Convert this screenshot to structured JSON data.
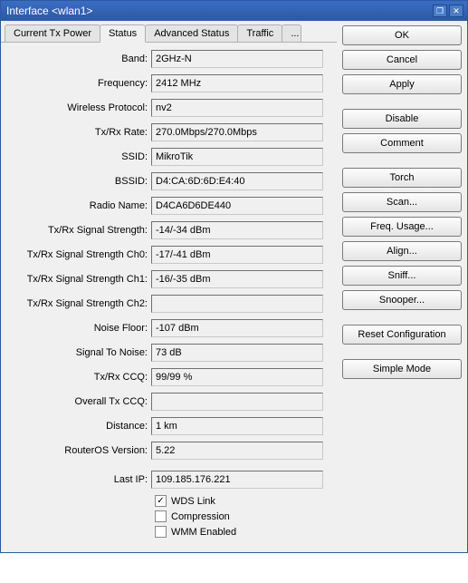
{
  "window": {
    "title": "Interface <wlan1>"
  },
  "tabs": {
    "current_tx_power": "Current Tx Power",
    "status": "Status",
    "advanced_status": "Advanced Status",
    "traffic": "Traffic",
    "more": "..."
  },
  "fields": {
    "band": {
      "label": "Band:",
      "value": "2GHz-N"
    },
    "frequency": {
      "label": "Frequency:",
      "value": "2412 MHz"
    },
    "wireless_protocol": {
      "label": "Wireless Protocol:",
      "value": "nv2"
    },
    "txrx_rate": {
      "label": "Tx/Rx Rate:",
      "value": "270.0Mbps/270.0Mbps"
    },
    "ssid": {
      "label": "SSID:",
      "value": "MikroTik"
    },
    "bssid": {
      "label": "BSSID:",
      "value": "D4:CA:6D:6D:E4:40"
    },
    "radio_name": {
      "label": "Radio Name:",
      "value": "D4CA6D6DE440"
    },
    "txrx_signal": {
      "label": "Tx/Rx Signal Strength:",
      "value": "-14/-34 dBm"
    },
    "txrx_signal_ch0": {
      "label": "Tx/Rx Signal Strength Ch0:",
      "value": "-17/-41 dBm"
    },
    "txrx_signal_ch1": {
      "label": "Tx/Rx Signal Strength Ch1:",
      "value": "-16/-35 dBm"
    },
    "txrx_signal_ch2": {
      "label": "Tx/Rx Signal Strength Ch2:",
      "value": ""
    },
    "noise_floor": {
      "label": "Noise Floor:",
      "value": "-107 dBm"
    },
    "signal_to_noise": {
      "label": "Signal To Noise:",
      "value": "73 dB"
    },
    "txrx_ccq": {
      "label": "Tx/Rx CCQ:",
      "value": "99/99 %"
    },
    "overall_tx_ccq": {
      "label": "Overall Tx CCQ:",
      "value": ""
    },
    "distance": {
      "label": "Distance:",
      "value": "1 km"
    },
    "routeros_version": {
      "label": "RouterOS Version:",
      "value": "5.22"
    },
    "last_ip": {
      "label": "Last IP:",
      "value": "109.185.176.221"
    }
  },
  "checkboxes": {
    "wds_link": {
      "label": "WDS Link",
      "checked": true
    },
    "compression": {
      "label": "Compression",
      "checked": false
    },
    "wmm_enabled": {
      "label": "WMM Enabled",
      "checked": false
    }
  },
  "buttons": {
    "ok": "OK",
    "cancel": "Cancel",
    "apply": "Apply",
    "disable": "Disable",
    "comment": "Comment",
    "torch": "Torch",
    "scan": "Scan...",
    "freq_usage": "Freq. Usage...",
    "align": "Align...",
    "sniff": "Sniff...",
    "snooper": "Snooper...",
    "reset_config": "Reset Configuration",
    "simple_mode": "Simple Mode"
  }
}
